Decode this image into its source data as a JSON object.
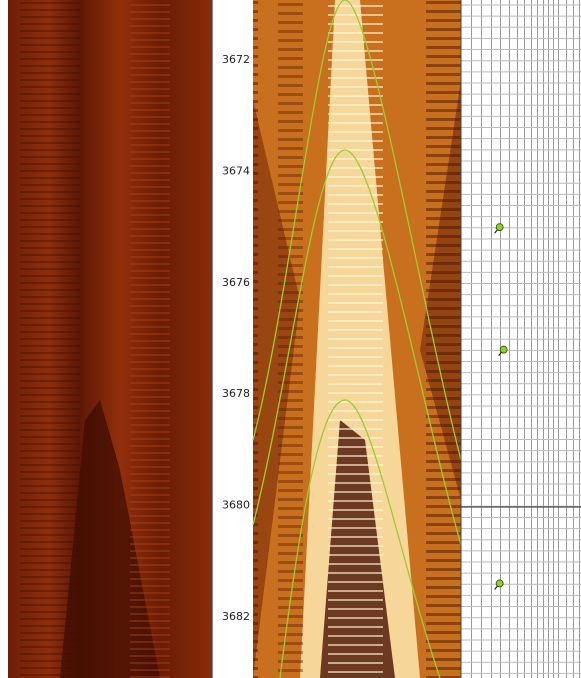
{
  "depth_track": {
    "labels": [
      3672,
      3674,
      3676,
      3678,
      3680,
      3682
    ],
    "range": [
      3670.92,
      3683.1
    ]
  },
  "dip_track": {
    "range": [
      0,
      90
    ],
    "dips": [
      {
        "depth": 3675.0,
        "dip": 29
      },
      {
        "depth": 3677.2,
        "dip": 32
      },
      {
        "depth": 3681.4,
        "dip": 29
      }
    ]
  }
}
